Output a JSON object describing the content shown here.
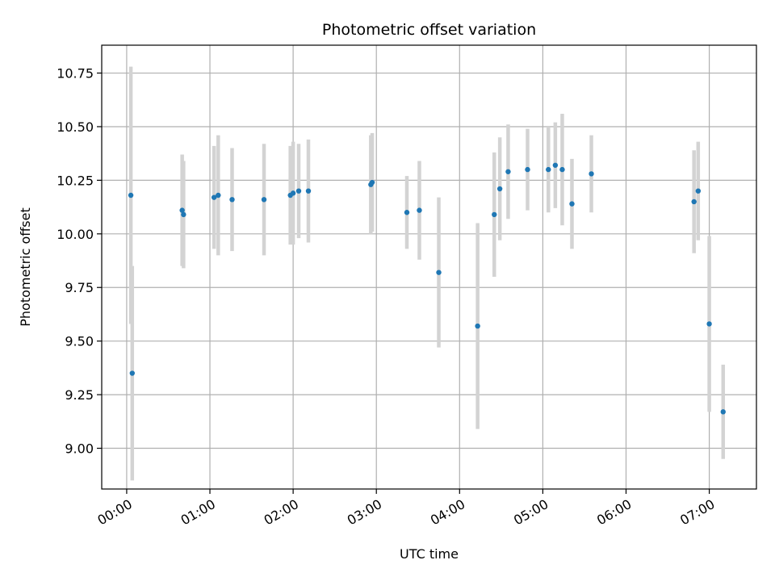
{
  "chart_data": {
    "type": "scatter",
    "title": "Photometric offset variation",
    "xlabel": "UTC time",
    "ylabel": "Photometric offset",
    "x_ticks": [
      "00:00",
      "01:00",
      "02:00",
      "03:00",
      "04:00",
      "05:00",
      "06:00",
      "07:00"
    ],
    "x_tick_hours": [
      0,
      1,
      2,
      3,
      4,
      5,
      6,
      7
    ],
    "y_ticks": [
      "9.00",
      "9.25",
      "9.50",
      "9.75",
      "10.00",
      "10.25",
      "10.50",
      "10.75"
    ],
    "y_tick_values": [
      9.0,
      9.25,
      9.5,
      9.75,
      10.0,
      10.25,
      10.5,
      10.75
    ],
    "xlim": [
      "23:42",
      "07:34"
    ],
    "ylim": [
      8.81,
      10.88
    ],
    "grid": true,
    "marker_color": "#1f77b4",
    "errorbar_color": "#d3d3d3",
    "points": [
      {
        "x": "00:03",
        "y": 10.18,
        "err": 0.6
      },
      {
        "x": "00:04",
        "y": 9.35,
        "err": 0.5
      },
      {
        "x": "00:40",
        "y": 10.11,
        "err": 0.26
      },
      {
        "x": "00:41",
        "y": 10.09,
        "err": 0.25
      },
      {
        "x": "01:03",
        "y": 10.17,
        "err": 0.24
      },
      {
        "x": "01:06",
        "y": 10.18,
        "err": 0.28
      },
      {
        "x": "01:16",
        "y": 10.16,
        "err": 0.24
      },
      {
        "x": "01:39",
        "y": 10.16,
        "err": 0.26
      },
      {
        "x": "01:58",
        "y": 10.18,
        "err": 0.23
      },
      {
        "x": "02:00",
        "y": 10.19,
        "err": 0.24
      },
      {
        "x": "02:04",
        "y": 10.2,
        "err": 0.22
      },
      {
        "x": "02:11",
        "y": 10.2,
        "err": 0.24
      },
      {
        "x": "02:56",
        "y": 10.23,
        "err": 0.23
      },
      {
        "x": "02:57",
        "y": 10.24,
        "err": 0.23
      },
      {
        "x": "03:22",
        "y": 10.1,
        "err": 0.17
      },
      {
        "x": "03:31",
        "y": 10.11,
        "err": 0.23
      },
      {
        "x": "03:45",
        "y": 9.82,
        "err": 0.35
      },
      {
        "x": "04:13",
        "y": 9.57,
        "err": 0.48
      },
      {
        "x": "04:25",
        "y": 10.09,
        "err": 0.29
      },
      {
        "x": "04:29",
        "y": 10.21,
        "err": 0.24
      },
      {
        "x": "04:35",
        "y": 10.29,
        "err": 0.22
      },
      {
        "x": "04:49",
        "y": 10.3,
        "err": 0.19
      },
      {
        "x": "05:04",
        "y": 10.3,
        "err": 0.2
      },
      {
        "x": "05:09",
        "y": 10.32,
        "err": 0.2
      },
      {
        "x": "05:14",
        "y": 10.3,
        "err": 0.26
      },
      {
        "x": "05:21",
        "y": 10.14,
        "err": 0.21
      },
      {
        "x": "05:35",
        "y": 10.28,
        "err": 0.18
      },
      {
        "x": "06:49",
        "y": 10.15,
        "err": 0.24
      },
      {
        "x": "06:52",
        "y": 10.2,
        "err": 0.23
      },
      {
        "x": "07:00",
        "y": 9.58,
        "err": 0.41
      },
      {
        "x": "07:10",
        "y": 9.17,
        "err": 0.22
      }
    ]
  }
}
